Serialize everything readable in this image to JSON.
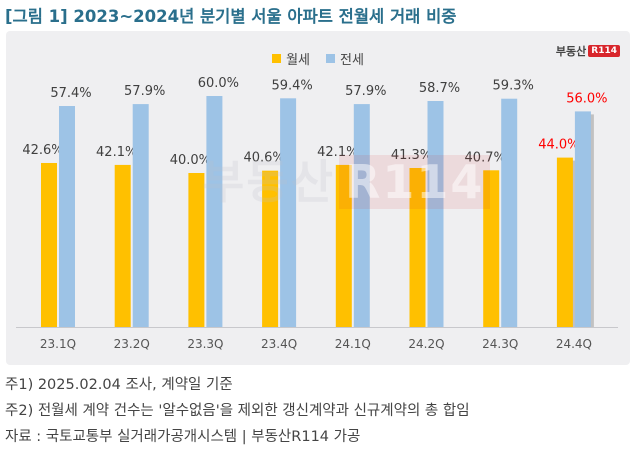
{
  "title": "[그림 1] 2023~2024년 분기별 서울 아파트 전월세 거래 비중",
  "logo": {
    "text": "부동산",
    "badge": "R114"
  },
  "watermark": {
    "text": "부동산",
    "badge": "R114"
  },
  "chart_data": {
    "type": "bar",
    "categories": [
      "23.1Q",
      "23.2Q",
      "23.3Q",
      "23.4Q",
      "24.1Q",
      "24.2Q",
      "24.3Q",
      "24.4Q"
    ],
    "series": [
      {
        "name": "월세",
        "color": "#ffc000",
        "values": [
          42.6,
          42.1,
          40.0,
          40.6,
          42.1,
          41.3,
          40.7,
          44.0
        ]
      },
      {
        "name": "전세",
        "color": "#9dc3e6",
        "values": [
          57.4,
          57.9,
          60.0,
          59.4,
          57.9,
          58.7,
          59.3,
          56.0
        ]
      }
    ],
    "data_labels": {
      "월세": [
        "42.6%",
        "42.1%",
        "40.0%",
        "40.6%",
        "42.1%",
        "41.3%",
        "40.7%",
        "44.0%"
      ],
      "전세": [
        "57.4%",
        "57.9%",
        "60.0%",
        "59.4%",
        "57.9%",
        "58.7%",
        "59.3%",
        "56.0%"
      ]
    },
    "highlight_color": "#ff0000",
    "highlight_index": 7,
    "ylim": [
      0,
      60
    ],
    "legend_position": "top-center",
    "grid": false
  },
  "notes": [
    "주1) 2025.02.04 조사, 계약일 기준",
    "주2) 전월세 계약 건수는 '알수없음'을 제외한 갱신계약과 신규계약의 총 합임",
    "자료 : 국토교통부 실거래가공개시스템 | 부동산R114 가공"
  ]
}
